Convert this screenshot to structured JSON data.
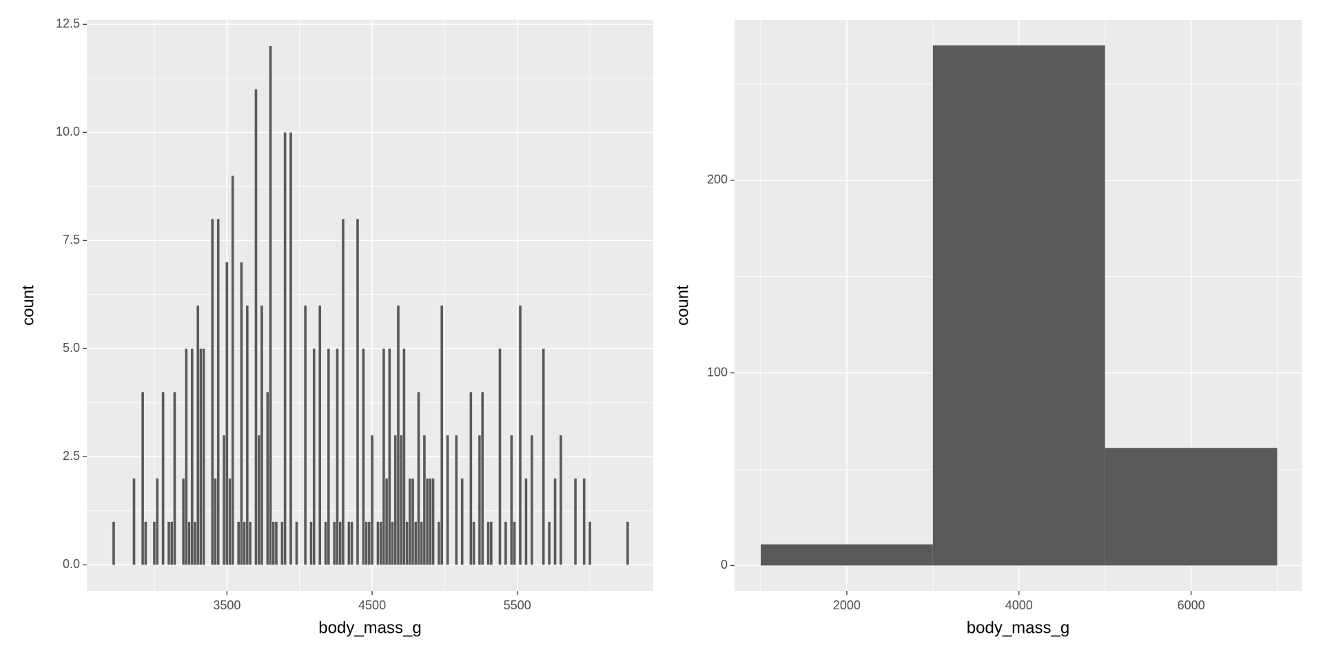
{
  "chart_data": [
    {
      "type": "histogram",
      "x_label": "body_mass_g",
      "y_label": "count",
      "color": "#595959",
      "grid": true,
      "bins": [
        2690,
        2710,
        2730,
        2750,
        2770,
        2790,
        2810,
        2830,
        2850,
        2870,
        2890,
        2910,
        2930,
        2950,
        2970,
        2990,
        3010,
        3030,
        3050,
        3070,
        3090,
        3110,
        3130,
        3150,
        3170,
        3190,
        3210,
        3230,
        3250,
        3270,
        3290,
        3310,
        3330,
        3350,
        3370,
        3390,
        3410,
        3430,
        3450,
        3470,
        3490,
        3510,
        3530,
        3550,
        3570,
        3590,
        3610,
        3630,
        3650,
        3670,
        3690,
        3710,
        3730,
        3750,
        3770,
        3790,
        3810,
        3830,
        3850,
        3870,
        3890,
        3910,
        3930,
        3950,
        3970,
        3990,
        4010,
        4030,
        4050,
        4070,
        4090,
        4110,
        4130,
        4150,
        4170,
        4190,
        4210,
        4230,
        4250,
        4270,
        4290,
        4310,
        4330,
        4350,
        4370,
        4390,
        4410,
        4430,
        4450,
        4470,
        4490,
        4510,
        4530,
        4550,
        4570,
        4590,
        4610,
        4630,
        4650,
        4670,
        4690,
        4710,
        4730,
        4750,
        4770,
        4790,
        4810,
        4830,
        4850,
        4870,
        4890,
        4910,
        4930,
        4950,
        4970,
        4990,
        5010,
        5030,
        5050,
        5070,
        5090,
        5110,
        5130,
        5150,
        5170,
        5190,
        5210,
        5230,
        5250,
        5270,
        5290,
        5310,
        5330,
        5350,
        5370,
        5390,
        5410,
        5430,
        5450,
        5470,
        5490,
        5510,
        5530,
        5550,
        5570,
        5590,
        5610,
        5630,
        5650,
        5670,
        5690,
        5710,
        5730,
        5750,
        5770,
        5790,
        5810,
        5830,
        5850,
        5870,
        5890,
        5910,
        5930,
        5950,
        5970,
        5990,
        6010,
        6030,
        6050,
        6070,
        6090,
        6110,
        6130,
        6150,
        6170,
        6190,
        6210,
        6230,
        6250,
        6270,
        6290,
        6310
      ],
      "values": [
        0,
        1,
        0,
        0,
        0,
        0,
        0,
        0,
        2,
        0,
        0,
        4,
        1,
        0,
        0,
        1,
        2,
        0,
        4,
        0,
        1,
        1,
        4,
        0,
        0,
        2,
        5,
        1,
        5,
        1,
        6,
        5,
        5,
        0,
        0,
        8,
        2,
        8,
        0,
        3,
        7,
        2,
        9,
        0,
        1,
        7,
        1,
        6,
        1,
        0,
        11,
        3,
        6,
        0,
        4,
        12,
        1,
        1,
        0,
        1,
        10,
        0,
        10,
        0,
        1,
        0,
        0,
        6,
        0,
        1,
        5,
        0,
        6,
        0,
        1,
        5,
        0,
        1,
        5,
        1,
        8,
        0,
        1,
        1,
        0,
        8,
        0,
        5,
        1,
        1,
        3,
        0,
        1,
        1,
        5,
        2,
        5,
        1,
        3,
        6,
        3,
        5,
        1,
        2,
        2,
        1,
        4,
        1,
        3,
        2,
        2,
        2,
        0,
        1,
        6,
        0,
        3,
        0,
        0,
        3,
        0,
        2,
        0,
        0,
        4,
        1,
        0,
        3,
        4,
        0,
        1,
        1,
        0,
        0,
        5,
        0,
        1,
        0,
        3,
        1,
        0,
        6,
        0,
        2,
        0,
        3,
        0,
        0,
        0,
        5,
        0,
        1,
        0,
        2,
        0,
        3,
        0,
        0,
        0,
        0,
        2,
        0,
        0,
        2,
        0,
        1,
        0,
        0,
        0,
        0,
        0,
        0,
        0,
        0,
        0,
        0,
        0,
        0,
        1,
        0,
        0
      ],
      "xlim": [
        2535,
        6436
      ],
      "xticks": [
        3500,
        4500,
        5500
      ],
      "ylim": [
        -0.6,
        12.6
      ],
      "yticks": [
        {
          "value": 0,
          "label": "0.0"
        },
        {
          "value": 2.5,
          "label": "2.5"
        },
        {
          "value": 5,
          "label": "5.0"
        },
        {
          "value": 7.5,
          "label": "7.5"
        },
        {
          "value": 10,
          "label": "10.0"
        },
        {
          "value": 12.5,
          "label": "12.5"
        }
      ]
    },
    {
      "type": "histogram",
      "x_label": "body_mass_g",
      "y_label": "count",
      "color": "#595959",
      "grid": true,
      "bins": [
        1000,
        3000,
        5000,
        7000
      ],
      "values": [
        11,
        270,
        61
      ],
      "xlim": [
        696,
        7284
      ],
      "xticks": [
        2000,
        4000,
        6000
      ],
      "ylim": [
        -13.1,
        283.2
      ],
      "yticks": [
        0,
        100,
        200
      ]
    }
  ]
}
